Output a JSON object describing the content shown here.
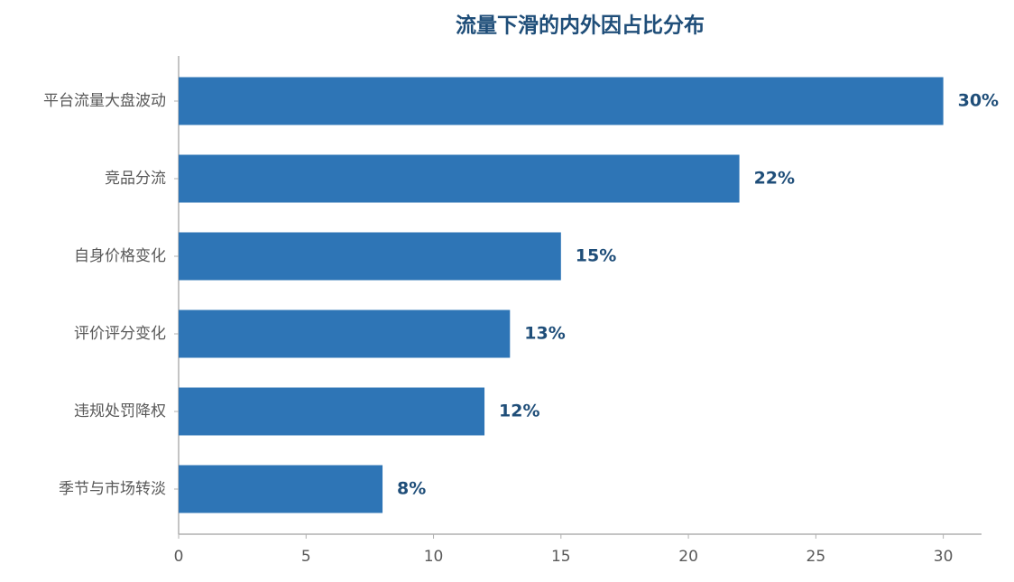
{
  "chart_data": {
    "type": "barh",
    "title": "流量下滑的内外因占比分布",
    "categories": [
      "平台流量大盘波动",
      "竞品分流",
      "自身价格变化",
      "评价评分变化",
      "违规处罚降权",
      "季节与市场转淡"
    ],
    "values": [
      30,
      22,
      15,
      13,
      12,
      8
    ],
    "value_labels": [
      "30%",
      "22%",
      "15%",
      "13%",
      "12%",
      "8%"
    ],
    "color": "#2e75b6",
    "xlim": [
      0,
      31.5
    ],
    "xticks": [
      0,
      5,
      10,
      15,
      20,
      25,
      30
    ],
    "grid": false
  }
}
